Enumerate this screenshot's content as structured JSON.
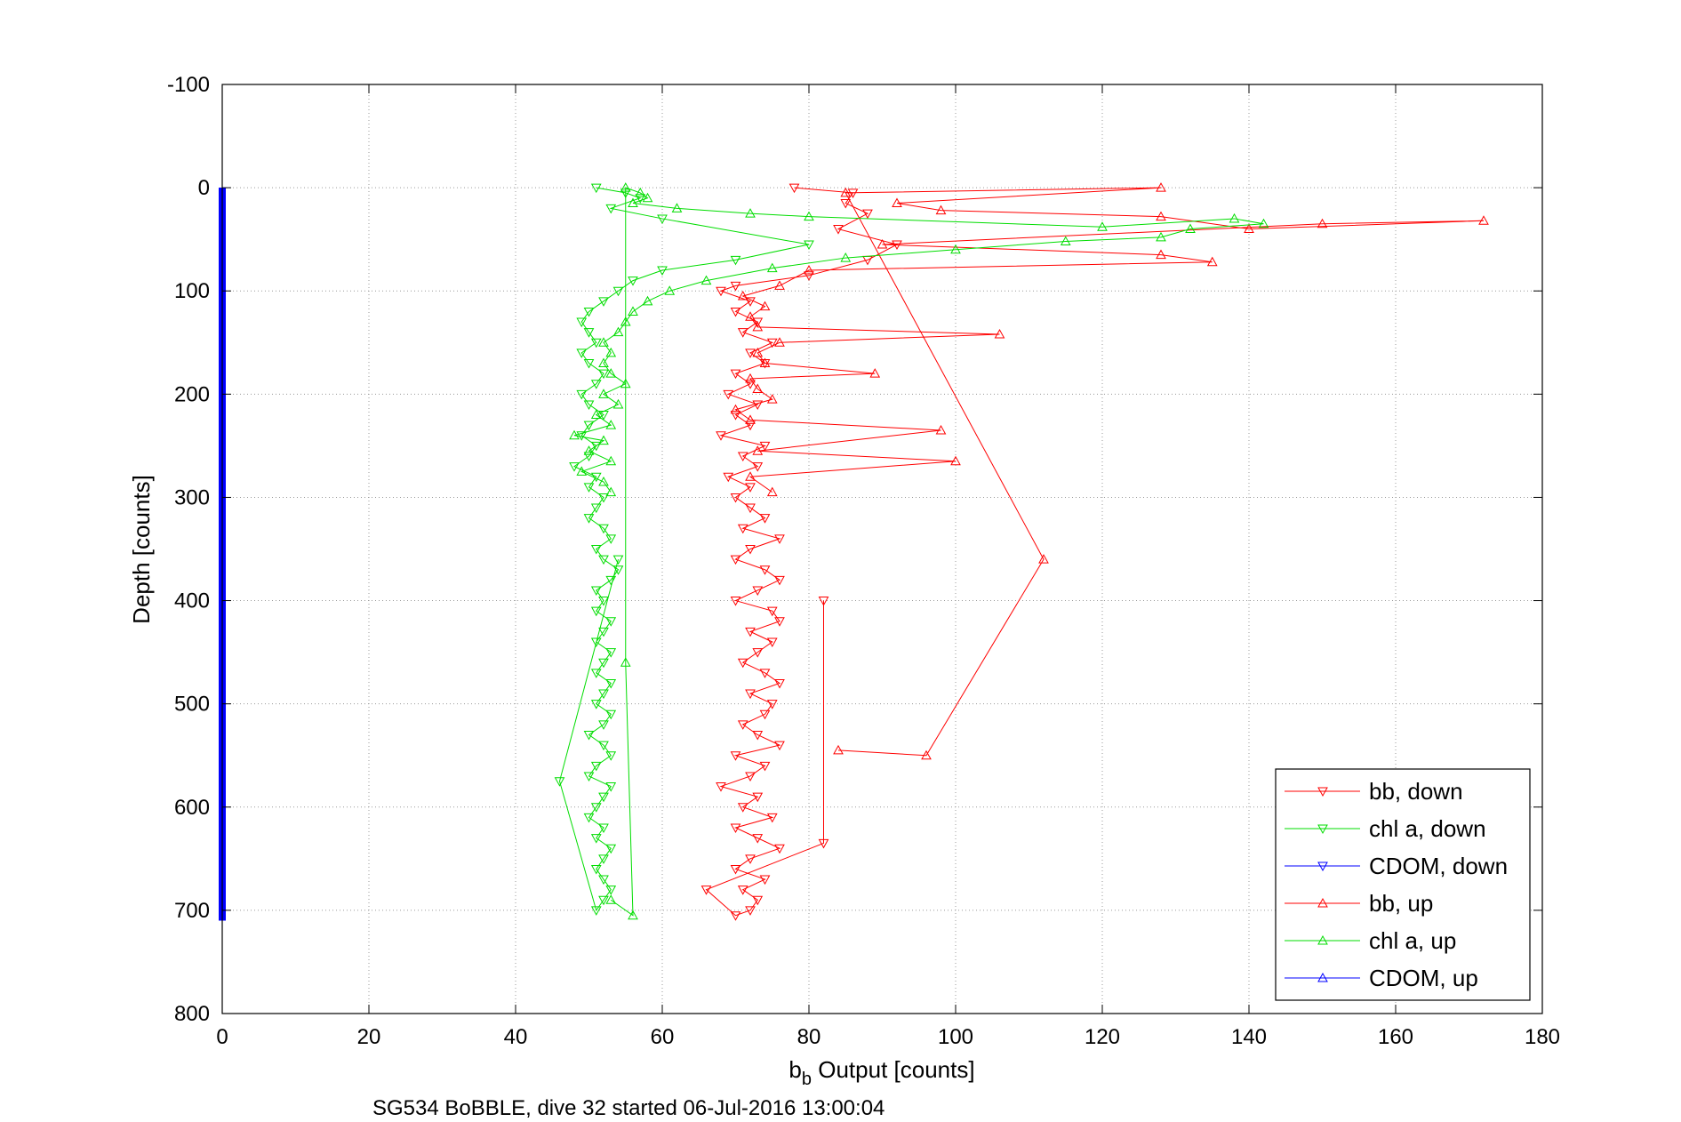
{
  "chart_data": {
    "type": "scatter",
    "title": "",
    "xlabel_main": "b",
    "xlabel_sub": "b",
    "xlabel_rest": " Output [counts]",
    "ylabel": "Depth [counts]",
    "caption": "SG534 BoBBLE, dive 32 started 06-Jul-2016 13:00:04",
    "xlim": [
      0,
      180
    ],
    "ylim": [
      -100,
      800
    ],
    "y_reversed": true,
    "grid": true,
    "x_ticks": [
      "0",
      "20",
      "40",
      "60",
      "80",
      "100",
      "120",
      "140",
      "160",
      "180"
    ],
    "y_ticks": [
      "-100",
      "0",
      "100",
      "200",
      "300",
      "400",
      "500",
      "600",
      "700",
      "800"
    ],
    "legend_position": "bottom-right",
    "series": [
      {
        "name": "bb, down",
        "color": "#ff0000",
        "marker": "triangle-down",
        "points": [
          [
            78,
            0
          ],
          [
            86,
            5
          ],
          [
            85,
            15
          ],
          [
            88,
            25
          ],
          [
            84,
            40
          ],
          [
            92,
            55
          ],
          [
            88,
            70
          ],
          [
            80,
            85
          ],
          [
            70,
            95
          ],
          [
            68,
            100
          ],
          [
            72,
            110
          ],
          [
            70,
            120
          ],
          [
            73,
            130
          ],
          [
            71,
            140
          ],
          [
            75,
            150
          ],
          [
            72,
            160
          ],
          [
            74,
            170
          ],
          [
            70,
            180
          ],
          [
            72,
            190
          ],
          [
            69,
            200
          ],
          [
            73,
            210
          ],
          [
            70,
            220
          ],
          [
            72,
            230
          ],
          [
            68,
            240
          ],
          [
            74,
            250
          ],
          [
            71,
            260
          ],
          [
            73,
            270
          ],
          [
            69,
            280
          ],
          [
            72,
            290
          ],
          [
            70,
            300
          ],
          [
            72,
            310
          ],
          [
            74,
            320
          ],
          [
            71,
            330
          ],
          [
            76,
            340
          ],
          [
            72,
            350
          ],
          [
            70,
            360
          ],
          [
            74,
            370
          ],
          [
            76,
            380
          ],
          [
            73,
            390
          ],
          [
            70,
            400
          ],
          [
            75,
            410
          ],
          [
            76,
            420
          ],
          [
            72,
            430
          ],
          [
            75,
            440
          ],
          [
            73,
            450
          ],
          [
            71,
            460
          ],
          [
            74,
            470
          ],
          [
            76,
            480
          ],
          [
            72,
            490
          ],
          [
            75,
            500
          ],
          [
            74,
            510
          ],
          [
            71,
            520
          ],
          [
            73,
            530
          ],
          [
            76,
            540
          ],
          [
            70,
            550
          ],
          [
            74,
            560
          ],
          [
            72,
            570
          ],
          [
            68,
            580
          ],
          [
            73,
            590
          ],
          [
            71,
            600
          ],
          [
            75,
            610
          ],
          [
            70,
            620
          ],
          [
            73,
            630
          ],
          [
            76,
            640
          ],
          [
            72,
            650
          ],
          [
            70,
            660
          ],
          [
            74,
            670
          ],
          [
            71,
            680
          ],
          [
            73,
            690
          ],
          [
            72,
            700
          ],
          [
            70,
            705
          ],
          [
            66,
            680
          ],
          [
            82,
            635
          ],
          [
            82,
            400
          ]
        ]
      },
      {
        "name": "chl a, down",
        "color": "#00dd00",
        "marker": "triangle-down",
        "points": [
          [
            51,
            0
          ],
          [
            55,
            5
          ],
          [
            57,
            10
          ],
          [
            53,
            20
          ],
          [
            60,
            30
          ],
          [
            80,
            55
          ],
          [
            70,
            70
          ],
          [
            60,
            80
          ],
          [
            56,
            90
          ],
          [
            54,
            100
          ],
          [
            52,
            110
          ],
          [
            50,
            120
          ],
          [
            49,
            130
          ],
          [
            50,
            140
          ],
          [
            51,
            150
          ],
          [
            49,
            160
          ],
          [
            50,
            170
          ],
          [
            52,
            180
          ],
          [
            51,
            190
          ],
          [
            49,
            200
          ],
          [
            50,
            210
          ],
          [
            52,
            220
          ],
          [
            50,
            230
          ],
          [
            49,
            240
          ],
          [
            51,
            250
          ],
          [
            50,
            260
          ],
          [
            48,
            270
          ],
          [
            51,
            280
          ],
          [
            50,
            290
          ],
          [
            52,
            300
          ],
          [
            51,
            310
          ],
          [
            50,
            320
          ],
          [
            52,
            330
          ],
          [
            53,
            340
          ],
          [
            51,
            350
          ],
          [
            52,
            360
          ],
          [
            54,
            370
          ],
          [
            53,
            380
          ],
          [
            51,
            390
          ],
          [
            52,
            400
          ],
          [
            51,
            410
          ],
          [
            53,
            420
          ],
          [
            52,
            430
          ],
          [
            51,
            440
          ],
          [
            53,
            450
          ],
          [
            52,
            460
          ],
          [
            51,
            470
          ],
          [
            53,
            480
          ],
          [
            52,
            490
          ],
          [
            51,
            500
          ],
          [
            53,
            510
          ],
          [
            52,
            520
          ],
          [
            50,
            530
          ],
          [
            52,
            540
          ],
          [
            53,
            550
          ],
          [
            51,
            560
          ],
          [
            50,
            570
          ],
          [
            53,
            580
          ],
          [
            52,
            590
          ],
          [
            51,
            600
          ],
          [
            50,
            610
          ],
          [
            52,
            620
          ],
          [
            51,
            630
          ],
          [
            53,
            640
          ],
          [
            52,
            650
          ],
          [
            51,
            660
          ],
          [
            52,
            670
          ],
          [
            53,
            680
          ],
          [
            52,
            690
          ],
          [
            51,
            700
          ],
          [
            46,
            575
          ],
          [
            54,
            360
          ]
        ]
      },
      {
        "name": "CDOM, down",
        "color": "#0000ff",
        "marker": "triangle-down",
        "points": [
          [
            0,
            0
          ],
          [
            0,
            100
          ],
          [
            0,
            200
          ],
          [
            0,
            300
          ],
          [
            0,
            400
          ],
          [
            0,
            500
          ],
          [
            0,
            600
          ],
          [
            0,
            700
          ],
          [
            0,
            710
          ]
        ]
      },
      {
        "name": "bb, up",
        "color": "#ff0000",
        "marker": "triangle-up",
        "points": [
          [
            75,
            295
          ],
          [
            72,
            280
          ],
          [
            100,
            265
          ],
          [
            73,
            255
          ],
          [
            98,
            235
          ],
          [
            72,
            225
          ],
          [
            70,
            215
          ],
          [
            75,
            205
          ],
          [
            73,
            195
          ],
          [
            72,
            185
          ],
          [
            89,
            180
          ],
          [
            74,
            170
          ],
          [
            73,
            160
          ],
          [
            76,
            150
          ],
          [
            106,
            142
          ],
          [
            73,
            135
          ],
          [
            72,
            125
          ],
          [
            74,
            115
          ],
          [
            71,
            105
          ],
          [
            76,
            95
          ],
          [
            80,
            80
          ],
          [
            135,
            72
          ],
          [
            128,
            65
          ],
          [
            90,
            55
          ],
          [
            150,
            35
          ],
          [
            172,
            32
          ],
          [
            140,
            40
          ],
          [
            128,
            28
          ],
          [
            98,
            22
          ],
          [
            92,
            15
          ],
          [
            128,
            0
          ],
          [
            85,
            5
          ],
          [
            112,
            360
          ],
          [
            96,
            550
          ],
          [
            84,
            545
          ]
        ]
      },
      {
        "name": "chl a, up",
        "color": "#00dd00",
        "marker": "triangle-up",
        "points": [
          [
            53,
            295
          ],
          [
            52,
            285
          ],
          [
            49,
            275
          ],
          [
            53,
            265
          ],
          [
            50,
            255
          ],
          [
            52,
            245
          ],
          [
            48,
            240
          ],
          [
            53,
            230
          ],
          [
            51,
            220
          ],
          [
            54,
            210
          ],
          [
            52,
            200
          ],
          [
            55,
            190
          ],
          [
            53,
            180
          ],
          [
            52,
            170
          ],
          [
            53,
            160
          ],
          [
            52,
            150
          ],
          [
            54,
            140
          ],
          [
            55,
            130
          ],
          [
            56,
            120
          ],
          [
            58,
            110
          ],
          [
            61,
            100
          ],
          [
            66,
            90
          ],
          [
            75,
            78
          ],
          [
            85,
            68
          ],
          [
            100,
            60
          ],
          [
            115,
            52
          ],
          [
            128,
            48
          ],
          [
            132,
            40
          ],
          [
            142,
            35
          ],
          [
            138,
            30
          ],
          [
            120,
            38
          ],
          [
            80,
            28
          ],
          [
            72,
            25
          ],
          [
            62,
            20
          ],
          [
            56,
            15
          ],
          [
            58,
            10
          ],
          [
            57,
            5
          ],
          [
            55,
            0
          ],
          [
            55,
            460
          ],
          [
            56,
            705
          ],
          [
            53,
            690
          ]
        ]
      },
      {
        "name": "CDOM, up",
        "color": "#0000ff",
        "marker": "triangle-up",
        "points": [
          [
            0,
            710
          ],
          [
            0,
            600
          ],
          [
            0,
            500
          ],
          [
            0,
            400
          ],
          [
            0,
            300
          ],
          [
            0,
            200
          ],
          [
            0,
            100
          ],
          [
            0,
            0
          ]
        ]
      }
    ]
  }
}
